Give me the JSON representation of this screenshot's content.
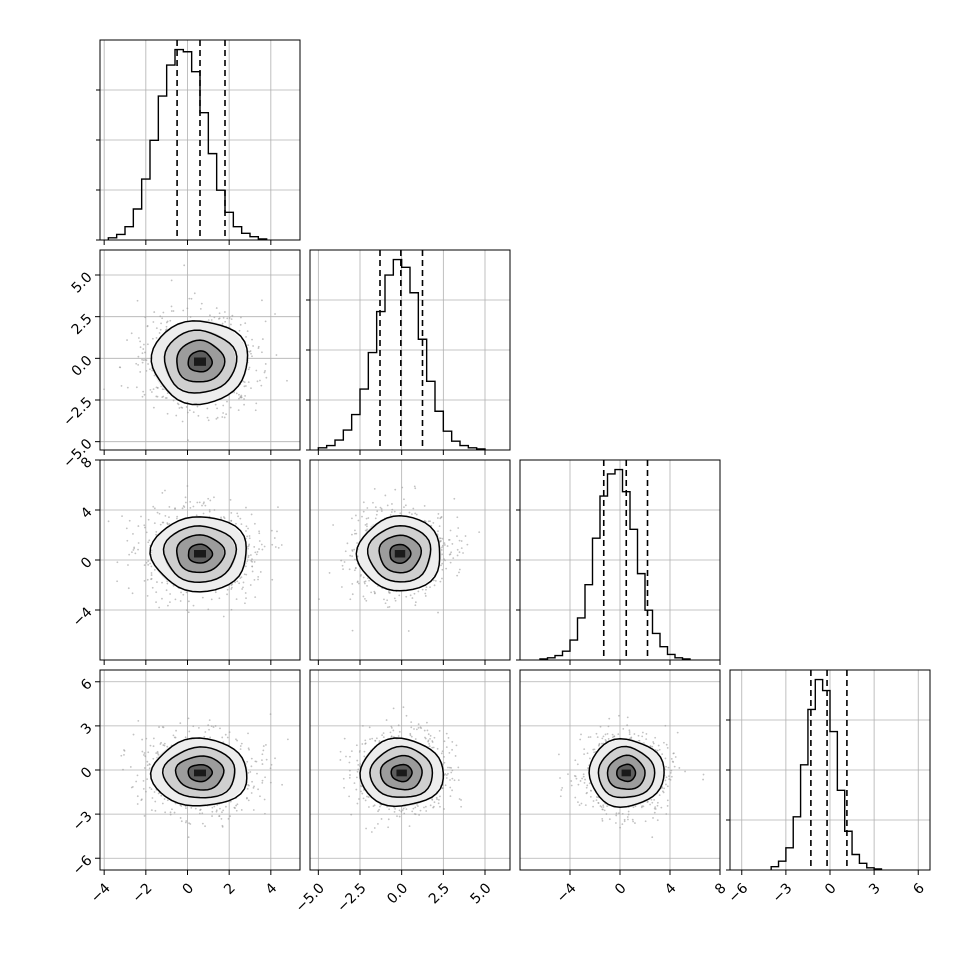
{
  "chart_data": {
    "type": "corner",
    "title": "",
    "parameters": [
      {
        "label": "",
        "range": [
          -4.2,
          5.4
        ],
        "quantiles": [
          -0.5,
          0.6,
          1.8
        ],
        "ticks": [
          -4,
          -2,
          0,
          2,
          4
        ],
        "tick_labels": [
          "−4",
          "−2",
          "0",
          "2",
          "4"
        ],
        "hist": {
          "edges_start": -3.8,
          "bin_width": 0.4,
          "counts": [
            2,
            5,
            12,
            28,
            55,
            90,
            130,
            158,
            172,
            170,
            152,
            115,
            78,
            45,
            25,
            12,
            6,
            3,
            1
          ]
        }
      },
      {
        "label": "",
        "range": [
          -5.5,
          6.5
        ],
        "quantiles": [
          -1.3,
          -0.05,
          1.25
        ],
        "ticks": [
          -5.0,
          -2.5,
          0.0,
          2.5,
          5.0
        ],
        "tick_labels": [
          "−5.0",
          "−2.5",
          "0.0",
          "2.5",
          "5.0"
        ],
        "hist": {
          "edges_start": -5.0,
          "bin_width": 0.5,
          "counts": [
            2,
            4,
            9,
            18,
            32,
            55,
            88,
            125,
            158,
            172,
            165,
            142,
            100,
            62,
            35,
            17,
            8,
            4,
            2,
            1
          ]
        }
      },
      {
        "label": "",
        "range": [
          -8,
          8
        ],
        "quantiles": [
          -1.3,
          0.5,
          2.2
        ],
        "ticks": [
          -4,
          0,
          4,
          8
        ],
        "tick_labels": [
          "−4",
          "0",
          "4",
          "8"
        ],
        "hist": {
          "edges_start": -6.4,
          "bin_width": 0.6,
          "counts": [
            1,
            2,
            4,
            8,
            18,
            38,
            68,
            110,
            148,
            168,
            172,
            152,
            118,
            78,
            45,
            24,
            12,
            5,
            2,
            1
          ]
        }
      },
      {
        "label": "",
        "range": [
          -6.8,
          6.8
        ],
        "quantiles": [
          -1.3,
          -0.2,
          1.15
        ],
        "ticks": [
          -6,
          -3,
          0,
          3,
          6
        ],
        "tick_labels": [
          "−6",
          "−3",
          "0",
          "3",
          "6"
        ],
        "hist": {
          "edges_start": -4.0,
          "bin_width": 0.5,
          "counts": [
            3,
            8,
            20,
            48,
            95,
            145,
            172,
            162,
            125,
            72,
            35,
            14,
            6,
            2,
            1
          ]
        }
      }
    ],
    "pairs": [
      {
        "row": 1,
        "col": 0,
        "center": [
          0.6,
          -0.2
        ],
        "sigma": [
          1.15,
          1.25
        ]
      },
      {
        "row": 2,
        "col": 0,
        "center": [
          0.6,
          0.5
        ],
        "sigma": [
          1.15,
          1.5
        ]
      },
      {
        "row": 2,
        "col": 1,
        "center": [
          -0.1,
          0.5
        ],
        "sigma": [
          1.25,
          1.5
        ]
      },
      {
        "row": 3,
        "col": 0,
        "center": [
          0.6,
          -0.2
        ],
        "sigma": [
          1.15,
          1.15
        ]
      },
      {
        "row": 3,
        "col": 1,
        "center": [
          0.0,
          -0.2
        ],
        "sigma": [
          1.25,
          1.15
        ]
      },
      {
        "row": 3,
        "col": 2,
        "center": [
          0.5,
          -0.2
        ],
        "sigma": [
          1.5,
          1.15
        ]
      }
    ],
    "contour_levels_sigma": [
      0.5,
      1.0,
      1.5,
      2.0
    ],
    "hist_type": "step",
    "quantile_line_style": "dashed",
    "grid": true,
    "colors": {
      "line": "#000000",
      "grid": "#b0b0b0",
      "axes": "#000000",
      "scatter": "#9a9a9a"
    }
  }
}
